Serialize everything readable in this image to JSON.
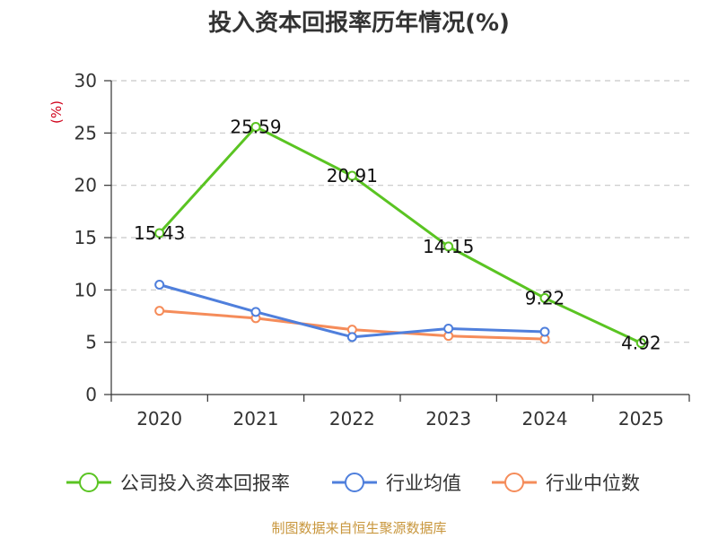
{
  "chart_data": {
    "type": "line",
    "title": "投入资本回报率历年情况(%)",
    "ylabel": "(%)",
    "xlabel": "",
    "categories": [
      "2020",
      "2021",
      "2022",
      "2023",
      "2024",
      "2025"
    ],
    "ylim": [
      0,
      30
    ],
    "yticks": [
      "0",
      "5",
      "10",
      "15",
      "20",
      "25",
      "30"
    ],
    "grid": true,
    "legend_position": "bottom",
    "series": [
      {
        "name": "公司投入资本回报率",
        "color": "#5ac422",
        "values": [
          15.43,
          25.59,
          20.91,
          14.15,
          9.22,
          4.92
        ],
        "labels": [
          "15.43",
          "25.59",
          "20.91",
          "14.15",
          "9.22",
          "4.92"
        ]
      },
      {
        "name": "行业均值",
        "color": "#4f7fdc",
        "values": [
          10.5,
          7.9,
          5.5,
          6.3,
          6.0,
          null
        ]
      },
      {
        "name": "行业中位数",
        "color": "#f58c5a",
        "values": [
          8.0,
          7.3,
          6.2,
          5.6,
          5.3,
          null
        ]
      }
    ]
  },
  "unit_color": "#d0021b",
  "source": {
    "text": "制图数据来自恒生聚源数据库",
    "color": "#c8963c"
  }
}
